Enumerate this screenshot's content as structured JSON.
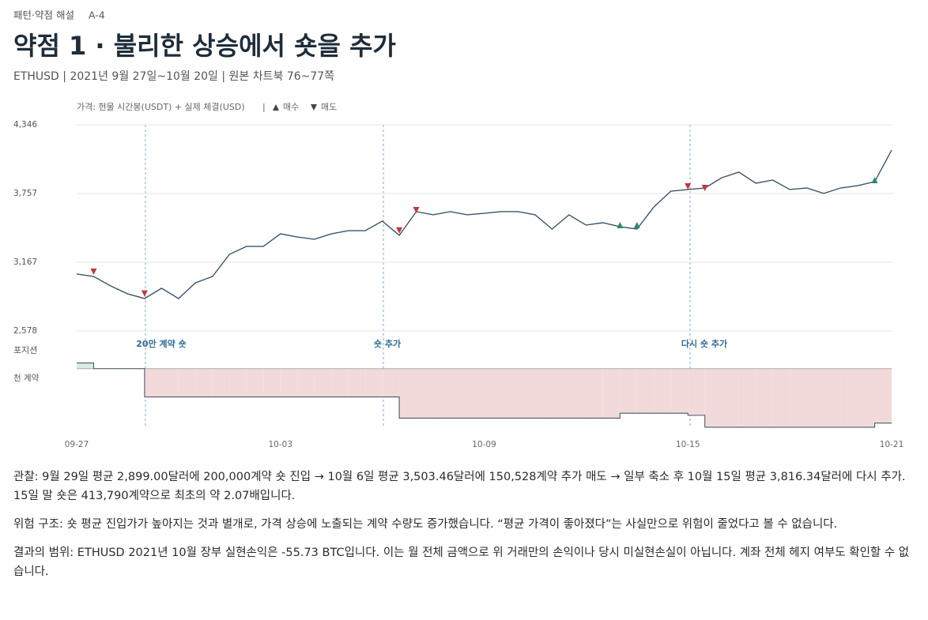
{
  "header": {
    "kicker": "패턴·약점 해설",
    "code": "A-4",
    "title": "약점 1 · 불리한 상승에서 숏을 추가",
    "subtitle": "ETHUSD | 2021년 9월 27일~10월 20일 | 원본 차트북 76~77쪽"
  },
  "chart_data": {
    "type": "line",
    "legend": {
      "price": "가격: 현물 시간봉(USDT) + 실제 체결(USD)",
      "separator": "|",
      "buy": "매수",
      "sell": "매도"
    },
    "x_labels": [
      "09-27",
      "10-03",
      "10-09",
      "10-15",
      "10-21"
    ],
    "ylim": [
      2578,
      4346
    ],
    "yticks": [
      {
        "value": 2578,
        "label": "2,578"
      },
      {
        "value": 3167,
        "label": "3,167"
      },
      {
        "value": 3757,
        "label": "3,757"
      },
      {
        "value": 4346,
        "label": "4,346"
      }
    ],
    "grid": true,
    "price": {
      "color": "#3d5566",
      "values": [
        3066,
        3045,
        2964,
        2896,
        2856,
        2944,
        2856,
        2991,
        3045,
        3235,
        3303,
        3303,
        3411,
        3384,
        3364,
        3411,
        3438,
        3438,
        3520,
        3398,
        3601,
        3574,
        3601,
        3574,
        3587,
        3601,
        3601,
        3574,
        3452,
        3574,
        3486,
        3506,
        3472,
        3452,
        3642,
        3777,
        3791,
        3804,
        3892,
        3940,
        3845,
        3872,
        3791,
        3804,
        3757,
        3804,
        3824,
        3858,
        4129
      ]
    },
    "sells": {
      "color": "#c0393b",
      "values": [
        null,
        3086,
        null,
        null,
        2899,
        null,
        null,
        null,
        null,
        null,
        null,
        null,
        null,
        null,
        null,
        null,
        null,
        null,
        null,
        3440,
        3614,
        null,
        null,
        null,
        null,
        null,
        null,
        null,
        null,
        null,
        null,
        null,
        null,
        null,
        null,
        null,
        3818,
        3804,
        null,
        null,
        null,
        null,
        null,
        null,
        null,
        null,
        null,
        null,
        null
      ]
    },
    "buys": {
      "color": "#2a8a6e",
      "values": [
        null,
        null,
        null,
        null,
        null,
        null,
        null,
        null,
        null,
        null,
        null,
        null,
        null,
        null,
        null,
        null,
        null,
        null,
        null,
        null,
        null,
        null,
        null,
        null,
        null,
        null,
        null,
        null,
        null,
        null,
        null,
        null,
        3486,
        3486,
        null,
        null,
        null,
        null,
        null,
        null,
        null,
        null,
        null,
        null,
        null,
        null,
        null,
        3872,
        null
      ]
    },
    "annotations": [
      "20만 계약 숏",
      "숏 추가",
      "다시 숏 추가"
    ],
    "position": {
      "label": "포지션",
      "unit": "천 계약",
      "ylim": [
        -420,
        60
      ],
      "long_color": "#d7eee5",
      "short_color": "#f3dada",
      "values": [
        40,
        0,
        0,
        0,
        -200,
        -200,
        -200,
        -200,
        -200,
        -200,
        -200,
        -200,
        -200,
        -200,
        -200,
        -200,
        -200,
        -200,
        -200,
        -350,
        -350,
        -350,
        -350,
        -350,
        -350,
        -350,
        -350,
        -350,
        -350,
        -350,
        -350,
        -350,
        -315,
        -315,
        -315,
        -315,
        -330,
        -414,
        -414,
        -414,
        -414,
        -414,
        -414,
        -414,
        -414,
        -414,
        -414,
        -385,
        -385
      ]
    }
  },
  "notes": [
    "관찰: 9월 29일 평균 2,899.00달러에 200,000계약 숏 진입 → 10월 6일 평균 3,503.46달러에 150,528계약 추가 매도 → 일부 축소 후 10월 15일 평균 3,816.34달러에 다시 추가. 15일 말 숏은 413,790계약으로 최초의 약 2.07배입니다.",
    "위험 구조: 숏 평균 진입가가 높아지는 것과 별개로, 가격 상승에 노출되는 계약 수량도 증가했습니다. “평균 가격이 좋아졌다”는 사실만으로 위험이 줄었다고 볼 수 없습니다.",
    "결과의 범위: ETHUSD 2021년 10월 장부 실현손익은 -55.73 BTC입니다. 이는 월 전체 금액으로 위 거래만의 손익이나 당시 미실현손실이 아닙니다. 계좌 전체 헤지 여부도 확인할 수 없습니다."
  ]
}
